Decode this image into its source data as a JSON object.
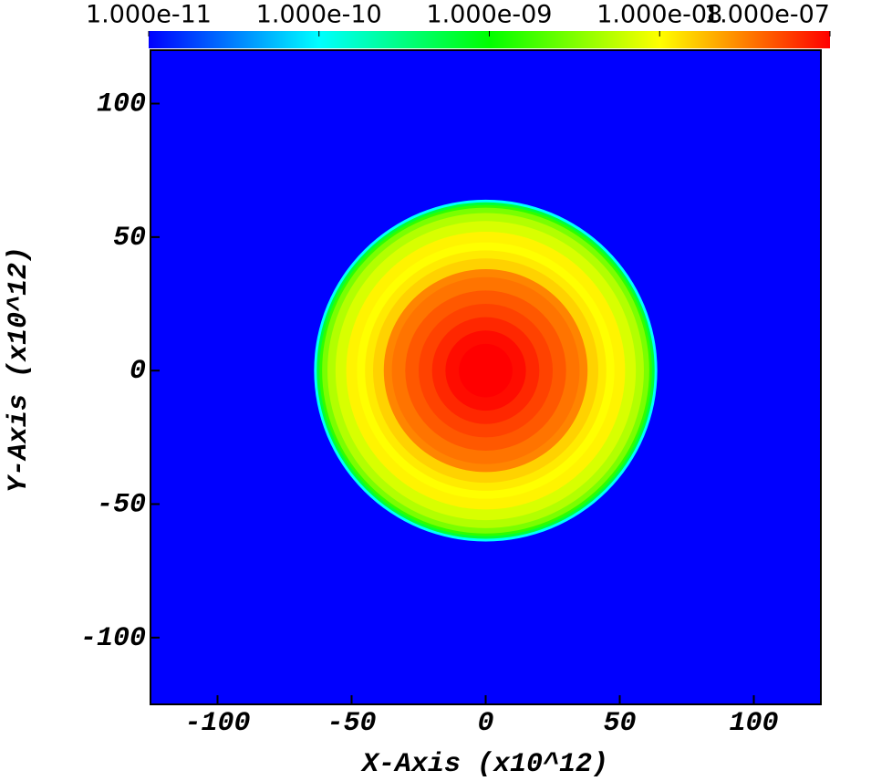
{
  "chart_data": {
    "type": "radial_heatmap",
    "xlabel": "X-Axis (x10^12)",
    "ylabel": "Y-Axis (x10^12)",
    "xlim": [
      -125,
      125
    ],
    "ylim": [
      -125,
      120
    ],
    "xticks": [
      -100,
      -50,
      0,
      50,
      100
    ],
    "yticks": [
      -100,
      -50,
      0,
      50,
      100
    ],
    "center": [
      0,
      0
    ],
    "r": [
      0,
      5,
      10,
      15,
      20,
      25,
      30,
      35,
      38,
      42,
      45,
      48,
      52,
      56,
      59,
      61,
      62,
      63,
      64
    ],
    "values": [
      1e-07,
      1e-07,
      9e-08,
      7e-08,
      5.5e-08,
      4.5e-08,
      3.5e-08,
      3e-08,
      1.5e-08,
      1.2e-08,
      1e-08,
      1.1e-08,
      7e-09,
      5e-09,
      3e-09,
      1.5e-09,
      6e-10,
      1e-10,
      1e-11
    ],
    "colorbar_scale": "log",
    "colorbar_lim": [
      1e-11,
      1e-07
    ],
    "colorbar_ticks": [
      {
        "value": 1e-11,
        "label": "1.000e-11"
      },
      {
        "value": 1e-10,
        "label": "1.000e-10"
      },
      {
        "value": 1e-09,
        "label": "1.000e-09"
      },
      {
        "value": 1e-08,
        "label": "1.000e-08"
      },
      {
        "value": 1e-07,
        "label": "1.000e-07"
      }
    ],
    "colormap": [
      "#0000ff",
      "#00ffff",
      "#00ff00",
      "#ffff00",
      "#ff0000"
    ]
  }
}
